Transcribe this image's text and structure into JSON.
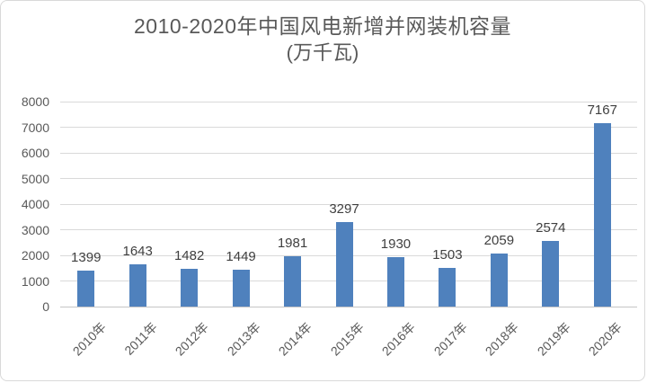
{
  "chart_data": {
    "type": "bar",
    "title": "2010-2020年中国风电新增并网装机容量",
    "subtitle": "(万千瓦)",
    "categories": [
      "2010年",
      "2011年",
      "2012年",
      "2013年",
      "2014年",
      "2015年",
      "2016年",
      "2017年",
      "2018年",
      "2019年",
      "2020年"
    ],
    "values": [
      1399,
      1643,
      1482,
      1449,
      1981,
      3297,
      1930,
      1503,
      2059,
      2574,
      7167
    ],
    "xlabel": "",
    "ylabel": "",
    "ylim": [
      0,
      8000
    ],
    "y_tick_step": 1000,
    "y_tick_labels": [
      "0",
      "1000",
      "2000",
      "3000",
      "4000",
      "5000",
      "6000",
      "7000",
      "8000"
    ],
    "grid": true,
    "legend": "none",
    "colors": {
      "bar": "#4f81bd",
      "gridline": "#d9d9d9",
      "axis_line": "#c6c6c6",
      "axis_text": "#595959",
      "value_label_text": "#404040",
      "title_text": "#595959",
      "background": "#ffffff",
      "border": "#d9d9d9"
    }
  }
}
